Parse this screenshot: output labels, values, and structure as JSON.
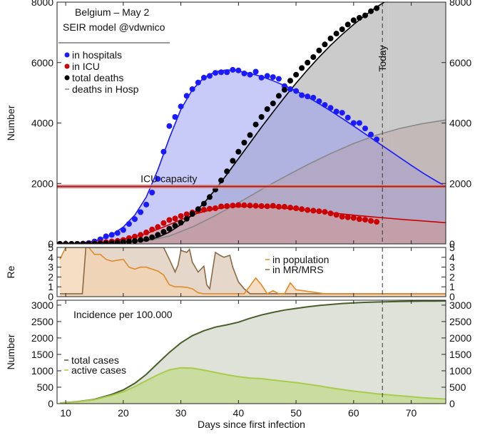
{
  "colors": {
    "hosp": "#1a1aff",
    "hosp_fill": "#c4c6f5",
    "icu": "#cc0000",
    "icu_fill": "#e9b9b6",
    "deaths": "#000000",
    "deaths_hosp": "#888888",
    "future_shade": "#c8c8c8",
    "re_pop": "#e08a2a",
    "re_pop_fill": "#f2d3b0",
    "re_mr": "#8a6a45",
    "re_mr_fill": "#e0d1c2",
    "total_cases": "#4a5e2a",
    "total_cases_fill": "#dfe2d8",
    "active_cases": "#a8cc4a",
    "active_cases_fill": "#cbdca0",
    "icu_capacity": "#aa2222"
  },
  "chart_data": [
    {
      "type": "scatter",
      "title": "Belgium – May 2",
      "subtitle": "SEIR model @vdwnico",
      "ylabel": "Number",
      "xlim": [
        8.5,
        76
      ],
      "ylim": [
        0,
        8000
      ],
      "yticks": [
        0,
        2000,
        4000,
        6000,
        8000
      ],
      "today": 65,
      "today_label": "Today",
      "reference_line": {
        "label": "ICU capacity",
        "value": 1900
      },
      "legend_placement": "top-left",
      "series": [
        {
          "name": "in hospitals",
          "kind": "points+model",
          "color": "#1a1aff",
          "x": [
            9,
            10,
            11,
            12,
            13,
            14,
            15,
            16,
            17,
            18,
            19,
            20,
            21,
            22,
            23,
            24,
            25,
            26,
            27,
            28,
            29,
            30,
            31,
            32,
            33,
            34,
            35,
            36,
            37,
            38,
            39,
            40,
            41,
            42,
            43,
            44,
            45,
            46,
            47,
            48,
            49,
            50,
            51,
            52,
            53,
            54,
            55,
            56,
            57,
            58,
            59,
            60,
            61,
            62,
            63,
            64
          ],
          "y": [
            0,
            0,
            0,
            0,
            10,
            30,
            80,
            150,
            250,
            300,
            360,
            460,
            660,
            820,
            1050,
            1300,
            1700,
            2150,
            3050,
            3900,
            4200,
            4550,
            4900,
            5120,
            5340,
            5500,
            5560,
            5660,
            5680,
            5680,
            5760,
            5740,
            5640,
            5600,
            5700,
            5500,
            5560,
            5520,
            5460,
            5220,
            5120,
            5060,
            4920,
            4880,
            4840,
            4720,
            4600,
            4500,
            4380,
            4340,
            4180,
            4000,
            4000,
            3820,
            3620,
            3460
          ],
          "model_x": [
            9,
            12,
            15,
            18,
            20,
            22,
            24,
            26,
            28,
            30,
            32,
            34,
            36,
            38,
            40,
            42,
            44,
            46,
            48,
            50,
            52,
            54,
            56,
            58,
            60,
            62,
            64,
            66,
            68,
            70,
            72,
            74,
            76
          ],
          "model_y": [
            0,
            20,
            90,
            300,
            560,
            950,
            1550,
            2450,
            3500,
            4450,
            5100,
            5500,
            5700,
            5760,
            5720,
            5640,
            5540,
            5400,
            5240,
            5060,
            4860,
            4640,
            4400,
            4150,
            3900,
            3640,
            3380,
            3120,
            2860,
            2600,
            2350,
            2120,
            1900
          ]
        },
        {
          "name": "in ICU",
          "kind": "points+model",
          "color": "#cc0000",
          "x": [
            9,
            10,
            11,
            12,
            13,
            14,
            15,
            16,
            17,
            18,
            19,
            20,
            21,
            22,
            23,
            24,
            25,
            26,
            27,
            28,
            29,
            30,
            31,
            32,
            33,
            34,
            35,
            36,
            37,
            38,
            39,
            40,
            41,
            42,
            43,
            44,
            45,
            46,
            47,
            48,
            49,
            50,
            51,
            52,
            53,
            54,
            55,
            56,
            57,
            58,
            59,
            60,
            61,
            62,
            63,
            64
          ],
          "y": [
            0,
            0,
            0,
            0,
            5,
            10,
            20,
            40,
            60,
            80,
            100,
            130,
            190,
            240,
            300,
            380,
            480,
            560,
            690,
            790,
            840,
            920,
            980,
            1040,
            1090,
            1130,
            1160,
            1180,
            1240,
            1250,
            1270,
            1285,
            1280,
            1270,
            1260,
            1250,
            1245,
            1260,
            1230,
            1230,
            1200,
            1180,
            1150,
            1120,
            1100,
            1080,
            1060,
            1010,
            960,
            900,
            880,
            860,
            820,
            800,
            760,
            730
          ],
          "model_x": [
            9,
            12,
            15,
            18,
            21,
            24,
            27,
            30,
            33,
            36,
            39,
            42,
            45,
            48,
            51,
            54,
            57,
            60,
            63,
            66,
            69,
            72,
            76
          ],
          "model_y": [
            0,
            5,
            30,
            90,
            190,
            340,
            560,
            800,
            1020,
            1160,
            1230,
            1240,
            1220,
            1180,
            1130,
            1070,
            1010,
            950,
            900,
            850,
            800,
            760,
            700
          ]
        },
        {
          "name": "total deaths",
          "kind": "points+model",
          "color": "#000000",
          "x": [
            9,
            10,
            11,
            12,
            13,
            14,
            15,
            16,
            17,
            18,
            19,
            20,
            21,
            22,
            23,
            24,
            25,
            26,
            27,
            28,
            29,
            30,
            31,
            32,
            33,
            34,
            35,
            36,
            37,
            38,
            39,
            40,
            41,
            42,
            43,
            44,
            45,
            46,
            47,
            48,
            49,
            50,
            51,
            52,
            53,
            54,
            55,
            56,
            57,
            58,
            59,
            60,
            61,
            62,
            63,
            64
          ],
          "y": [
            0,
            0,
            0,
            0,
            0,
            0,
            5,
            10,
            20,
            30,
            40,
            60,
            80,
            100,
            130,
            160,
            220,
            300,
            400,
            500,
            600,
            700,
            830,
            990,
            1150,
            1330,
            1550,
            1800,
            2100,
            2400,
            2750,
            3050,
            3350,
            3600,
            3950,
            4200,
            4460,
            4650,
            4900,
            5100,
            5400,
            5600,
            5820,
            6000,
            6180,
            6400,
            6600,
            6800,
            6960,
            7100,
            7260,
            7400,
            7480,
            7560,
            7700,
            7800
          ],
          "model_x": [
            9,
            14,
            18,
            22,
            24,
            26,
            28,
            30,
            32,
            34,
            36,
            38,
            40,
            42,
            44,
            46,
            48,
            50,
            52,
            54,
            56,
            58,
            60,
            62,
            64,
            65,
            66
          ],
          "model_y": [
            0,
            0,
            10,
            60,
            120,
            220,
            390,
            640,
            960,
            1350,
            1800,
            2300,
            2820,
            3340,
            3860,
            4360,
            4850,
            5320,
            5760,
            6180,
            6570,
            6930,
            7260,
            7560,
            7840,
            7960,
            8080
          ]
        },
        {
          "name": "deaths in Hosp",
          "kind": "model",
          "color": "#888888",
          "model_x": [
            9,
            20,
            24,
            28,
            32,
            36,
            40,
            44,
            48,
            52,
            56,
            60,
            64,
            68,
            72,
            76
          ],
          "model_y": [
            0,
            20,
            90,
            260,
            560,
            940,
            1360,
            1800,
            2220,
            2620,
            2990,
            3320,
            3600,
            3820,
            3980,
            4100
          ]
        }
      ]
    },
    {
      "type": "area",
      "ylabel": "Re",
      "xlim": [
        8.5,
        76
      ],
      "ylim": [
        0,
        5
      ],
      "yticks": [
        0,
        1,
        2,
        3,
        4,
        5
      ],
      "today": 65,
      "legend_placement": "right",
      "series": [
        {
          "name": "in population",
          "color": "#e08a2a",
          "x": [
            9,
            10,
            11,
            12,
            13,
            14,
            15,
            16,
            17,
            18,
            19,
            20,
            21,
            22,
            23,
            24,
            25,
            26,
            27,
            28,
            29,
            30,
            31,
            32,
            33,
            34,
            35,
            36,
            37,
            38,
            39,
            40,
            41,
            42,
            43,
            44,
            45,
            46,
            47,
            48,
            49,
            50,
            55,
            60,
            65,
            70,
            76
          ],
          "y": [
            3.8,
            5,
            5,
            5,
            5,
            5,
            4.3,
            4.3,
            3.8,
            3.6,
            3.7,
            3.8,
            3,
            2.8,
            3,
            3,
            2.8,
            2.6,
            2.2,
            1.2,
            1.0,
            1.0,
            0.95,
            0.8,
            0.4,
            0.3,
            0.3,
            0.3,
            0.3,
            0.3,
            0.3,
            0.3,
            0.3,
            1.1,
            1.9,
            1.2,
            0.3,
            0.6,
            0.3,
            0.3,
            1.4,
            0.7,
            0.3,
            0.3,
            0.3,
            0.3,
            0.3
          ]
        },
        {
          "name": "in MR/MRS",
          "color": "#8a6a45",
          "x": [
            9,
            11,
            12.9,
            13.5,
            15,
            20,
            25,
            26,
            27,
            28,
            29,
            29.5,
            30,
            31,
            31.5,
            32,
            33,
            34,
            34.5,
            35,
            36,
            36.8,
            37.5,
            38.5,
            39,
            40,
            41,
            42,
            43,
            45,
            50,
            55,
            60,
            65,
            70,
            76
          ],
          "y": [
            0.3,
            0.3,
            0.3,
            5,
            5,
            5,
            5,
            5,
            5,
            3.8,
            2.5,
            3.2,
            4.7,
            4.5,
            4.8,
            3.5,
            2.5,
            3.1,
            1.2,
            0.8,
            4.5,
            4.2,
            4.0,
            4.2,
            3.0,
            1.5,
            0.8,
            0.3,
            0.3,
            0.3,
            0.3,
            0.3,
            0.3,
            0.3,
            0.3,
            0.3
          ]
        }
      ]
    },
    {
      "type": "area",
      "title": "Incidence per 100.000",
      "ylabel": "Number",
      "xlabel": "Days since first infection",
      "xlim": [
        8.5,
        76
      ],
      "ylim": [
        0,
        3150
      ],
      "xticks": [
        10,
        20,
        30,
        40,
        50,
        60,
        70
      ],
      "yticks": [
        0,
        500,
        1000,
        1500,
        2000,
        2500,
        3000
      ],
      "today": 65,
      "legend_placement": "left",
      "series": [
        {
          "name": "total cases",
          "color": "#4a5e2a",
          "x": [
            9,
            12,
            15,
            18,
            20,
            22,
            24,
            26,
            28,
            30,
            32,
            34,
            36,
            38,
            40,
            42,
            44,
            46,
            48,
            50,
            52,
            54,
            56,
            58,
            60,
            62,
            64,
            66,
            68,
            70,
            72,
            74,
            76
          ],
          "y": [
            20,
            60,
            130,
            280,
            420,
            620,
            890,
            1230,
            1560,
            1850,
            2070,
            2220,
            2330,
            2400,
            2480,
            2600,
            2700,
            2780,
            2850,
            2900,
            2950,
            2990,
            3020,
            3050,
            3070,
            3085,
            3095,
            3105,
            3112,
            3118,
            3122,
            3125,
            3128
          ]
        },
        {
          "name": "active cases",
          "color": "#a8cc4a",
          "x": [
            9,
            12,
            15,
            18,
            20,
            22,
            24,
            26,
            28,
            30,
            32,
            34,
            36,
            38,
            40,
            42,
            44,
            46,
            48,
            50,
            52,
            54,
            56,
            58,
            60,
            62,
            64,
            66,
            68,
            70,
            72,
            74,
            76
          ],
          "y": [
            20,
            55,
            120,
            250,
            360,
            520,
            700,
            880,
            1030,
            1090,
            1080,
            1020,
            950,
            880,
            820,
            780,
            760,
            720,
            680,
            640,
            590,
            540,
            480,
            430,
            380,
            340,
            300,
            270,
            240,
            210,
            180,
            160,
            140
          ]
        }
      ]
    }
  ]
}
